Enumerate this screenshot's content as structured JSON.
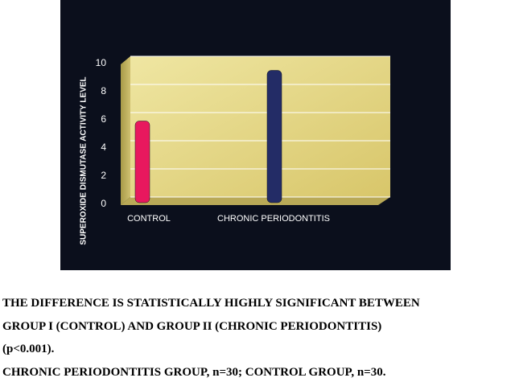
{
  "chart_data": {
    "type": "bar",
    "ylabel": "SUPEROXIDE DISMUTASE ACTIVITY LEVEL",
    "categories": [
      "CONTROL",
      "CHRONIC PERIODONTITIS"
    ],
    "values": [
      5.8,
      9.4
    ],
    "colors": [
      "#e8185e",
      "#232c66"
    ],
    "ylim": [
      0,
      10
    ],
    "yticks": [
      0,
      2,
      4,
      6,
      8,
      10
    ],
    "grid": true,
    "notes": [
      "THE DIFFERENCE IS STATISTICALLY HIGHLY SIGNIFICANT BETWEEN",
      "GROUP I (CONTROL) AND GROUP II (CHRONIC PERIODONTITIS)",
      "(p<0.001).",
      "CHRONIC PERIODONTITIS GROUP, n=30;  CONTROL GROUP, n=30."
    ]
  }
}
